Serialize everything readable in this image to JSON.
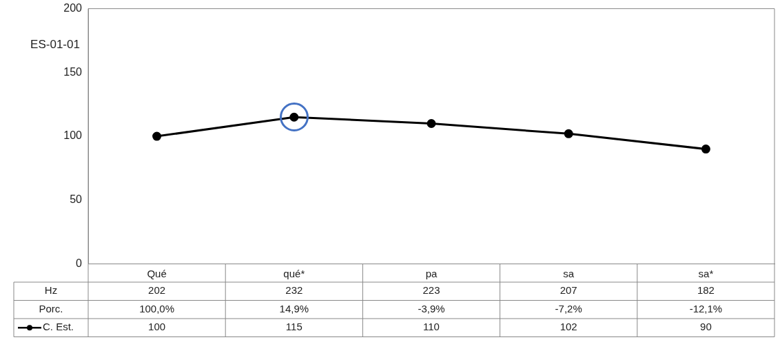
{
  "chart_data": {
    "type": "line",
    "categories": [
      "Qué",
      "qué*",
      "pa",
      "sa",
      "sa*"
    ],
    "series": [
      {
        "name": "C. Est.",
        "color": "#000000",
        "values": [
          100,
          115,
          110,
          102,
          90
        ]
      }
    ],
    "ylim": [
      0,
      200
    ],
    "yticks": [
      0,
      50,
      100,
      150,
      200
    ],
    "grid": false,
    "legend": "bottom left",
    "marker": "circle",
    "line_style": "solid",
    "data_labels": true,
    "annotations": [
      "ES-01-01",
      "Hz",
      "202",
      "232",
      "223",
      "207",
      "182",
      "Porc.",
      "100,0%",
      "14,9%",
      "-3,9%",
      "-7,2%",
      "-12,1%"
    ]
  }
}
